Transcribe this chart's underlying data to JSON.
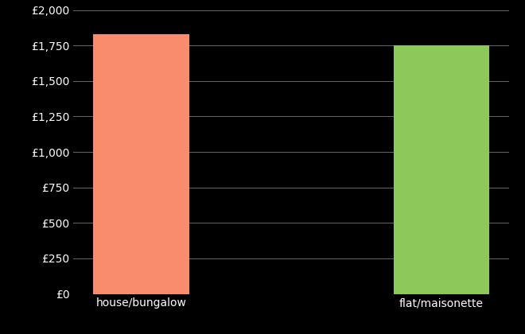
{
  "categories": [
    "house/bungalow",
    "flat/maisonette"
  ],
  "values": [
    1830,
    1750
  ],
  "bar_colors": [
    "#FA8C6E",
    "#8DC85A"
  ],
  "background_color": "#000000",
  "text_color": "#ffffff",
  "grid_color": "#666666",
  "ylim": [
    0,
    2000
  ],
  "yticks": [
    0,
    250,
    500,
    750,
    1000,
    1250,
    1500,
    1750,
    2000
  ],
  "bar_width": 0.32,
  "figsize": [
    6.6,
    4.2
  ],
  "dpi": 100
}
